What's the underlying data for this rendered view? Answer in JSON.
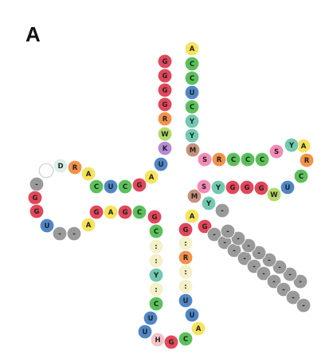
{
  "panel_label": "A",
  "colors": {
    "A": "#f6e35c",
    "C": "#5bc05a",
    "G": "#e2475a",
    "U": "#4f86c6",
    "R": "#f3924a",
    "Y": "#72c9b0",
    "W": "#b4da6a",
    "K": "#b58bd1",
    "M": "#c7907a",
    "S": "#f48bb6",
    "D": "#d9efe9",
    "H": "#f4c3c9",
    "colon": "#f4f0c8",
    "gap": "#9a9a9a",
    "dash": "#a6a6a6",
    "empty": "#ffffff"
  },
  "segments": [
    {
      "name": "acceptor-5prime-strand",
      "letters": [
        "G",
        "G",
        "G",
        "G",
        "R",
        "W",
        "K",
        "U"
      ]
    },
    {
      "name": "d-stem-5prime-strand",
      "letters": [
        "A",
        "G",
        "C",
        "U",
        "C"
      ]
    },
    {
      "name": "d-loop-top",
      "letters": [
        "A",
        "R",
        "D",
        ""
      ]
    },
    {
      "name": "d-loop-bottom",
      "letters": [
        "-",
        "G",
        "G",
        "U",
        "-",
        "-",
        "A"
      ]
    },
    {
      "name": "d-stem-3prime-strand",
      "letters": [
        "G",
        "A",
        "G",
        "C"
      ]
    },
    {
      "name": "anticodon-stem-5prime-strand",
      "letters": [
        "G",
        "C",
        ":",
        ":",
        "Y",
        ":",
        "C"
      ]
    },
    {
      "name": "anticodon-loop",
      "letters": [
        "U",
        "U",
        "H",
        "G",
        "C"
      ]
    },
    {
      "name": "anticodon-stem-3prime-strand",
      "letters": [
        "A",
        "U",
        "U",
        ":",
        ":",
        "R",
        ":",
        "G",
        "A"
      ]
    },
    {
      "name": "variable-arm",
      "letters": [
        "G",
        "-",
        "-",
        "-",
        "-",
        "-",
        "-",
        "-",
        "-",
        "-",
        "-",
        "-",
        "-",
        "-",
        "-",
        "-",
        "-",
        "-",
        "-",
        "-"
      ]
    },
    {
      "name": "t-stem-5prime-strand",
      "letters": [
        "Y",
        "M",
        "S",
        "Y",
        "G",
        "G",
        "G"
      ]
    },
    {
      "name": "t-loop",
      "letters": [
        "W",
        "U",
        "C",
        "R",
        "A",
        "Y",
        "S"
      ]
    },
    {
      "name": "t-stem-3prime-strand",
      "letters": [
        "C",
        "C",
        "C",
        "R",
        "S",
        "M"
      ]
    },
    {
      "name": "acceptor-3prime-strand",
      "letters": [
        "Y",
        "Y",
        "C",
        "U",
        "C",
        "C",
        "A"
      ]
    }
  ]
}
